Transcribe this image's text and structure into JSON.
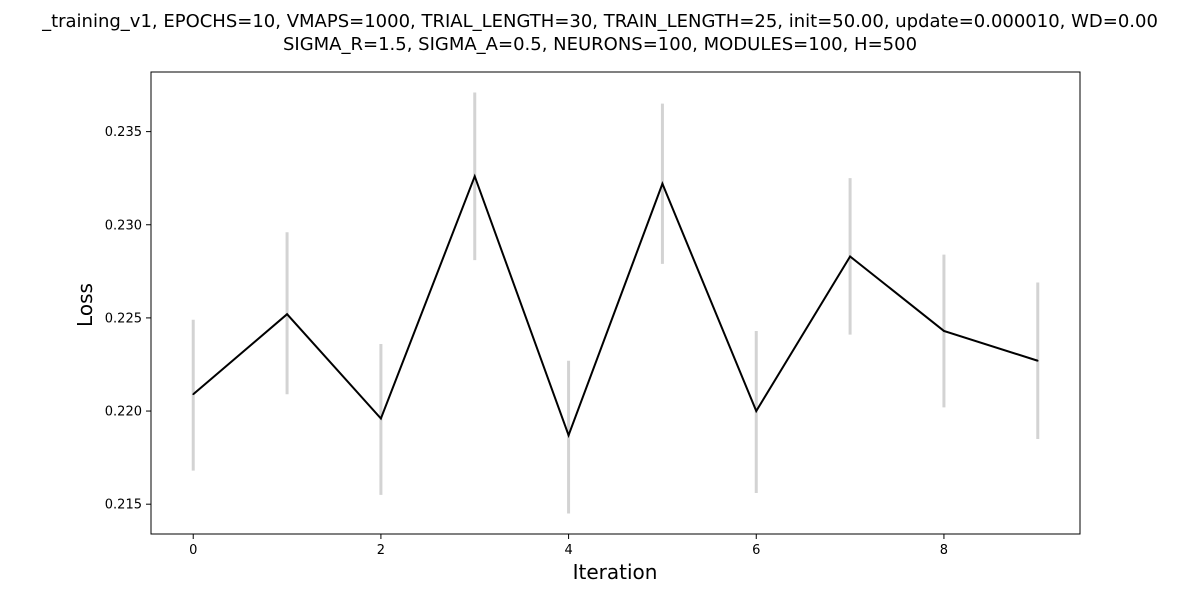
{
  "chart_data": {
    "type": "line",
    "title_line1": "_training_v1, EPOCHS=10, VMAPS=1000, TRIAL_LENGTH=30, TRAIN_LENGTH=25, init=50.00, update=0.000010, WD=0.00",
    "title_line2": "SIGMA_R=1.5, SIGMA_A=0.5, NEURONS=100, MODULES=100, H=500",
    "xlabel": "Iteration",
    "ylabel": "Loss",
    "xlim": [
      -0.45,
      9.45
    ],
    "ylim": [
      0.2134,
      0.2382
    ],
    "xticks": [
      0,
      2,
      4,
      6,
      8
    ],
    "xtick_labels": [
      "0",
      "2",
      "4",
      "6",
      "8"
    ],
    "yticks": [
      0.215,
      0.22,
      0.225,
      0.23,
      0.235
    ],
    "ytick_labels": [
      "0.215",
      "0.220",
      "0.225",
      "0.230",
      "0.235"
    ],
    "grid": false,
    "x": [
      0,
      1,
      2,
      3,
      4,
      5,
      6,
      7,
      8,
      9
    ],
    "series": [
      {
        "values": [
          0.2209,
          0.2252,
          0.2196,
          0.2326,
          0.2187,
          0.2322,
          0.22,
          0.2283,
          0.2243,
          0.2227
        ],
        "error_low": [
          0.2168,
          0.2209,
          0.2155,
          0.2281,
          0.2145,
          0.2279,
          0.2156,
          0.2241,
          0.2202,
          0.2185
        ],
        "error_high": [
          0.2249,
          0.2296,
          0.2236,
          0.2371,
          0.2227,
          0.2365,
          0.2243,
          0.2325,
          0.2284,
          0.2269
        ],
        "line_color": "#000000",
        "error_color": "#d3d3d3"
      }
    ]
  }
}
